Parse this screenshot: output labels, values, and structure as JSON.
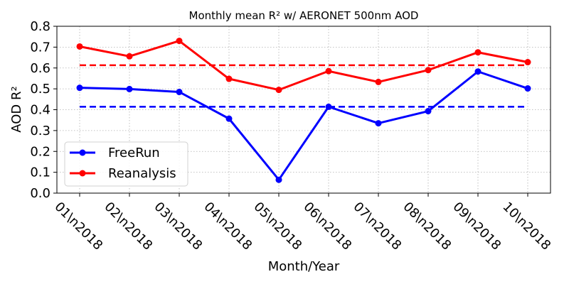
{
  "chart_data": {
    "type": "line",
    "title": "Monthly mean R² w/ AERONET 500nm AOD",
    "xlabel": "Month/Year",
    "ylabel": "AOD R²",
    "categories": [
      "01\\n2018",
      "02\\n2018",
      "03\\n2018",
      "04\\n2018",
      "05\\n2018",
      "06\\n2018",
      "07\\n2018",
      "08\\n2018",
      "09\\n2018",
      "10\\n2018"
    ],
    "ylim": [
      0.0,
      0.8
    ],
    "yticks": [
      "0.0",
      "0.1",
      "0.2",
      "0.3",
      "0.4",
      "0.5",
      "0.6",
      "0.7",
      "0.8"
    ],
    "grid": true,
    "legend_position": "lower-left",
    "series": [
      {
        "name": "FreeRun",
        "color": "#0000ff",
        "values": [
          0.505,
          0.499,
          0.485,
          0.357,
          0.064,
          0.414,
          0.335,
          0.393,
          0.583,
          0.502
        ],
        "mean": 0.414
      },
      {
        "name": "Reanalysis",
        "color": "#ff0000",
        "values": [
          0.703,
          0.656,
          0.73,
          0.548,
          0.495,
          0.585,
          0.533,
          0.59,
          0.675,
          0.628
        ],
        "mean": 0.613
      }
    ]
  }
}
